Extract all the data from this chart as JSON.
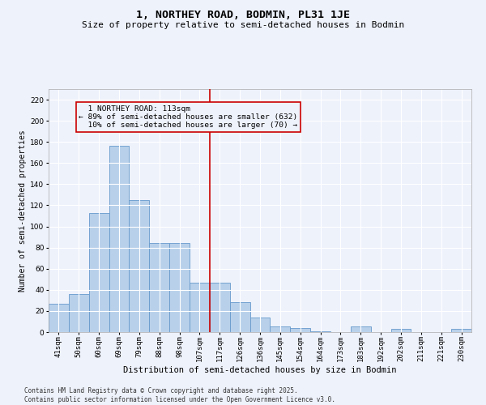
{
  "title": "1, NORTHEY ROAD, BODMIN, PL31 1JE",
  "subtitle": "Size of property relative to semi-detached houses in Bodmin",
  "xlabel": "Distribution of semi-detached houses by size in Bodmin",
  "ylabel": "Number of semi-detached properties",
  "categories": [
    "41sqm",
    "50sqm",
    "60sqm",
    "69sqm",
    "79sqm",
    "88sqm",
    "98sqm",
    "107sqm",
    "117sqm",
    "126sqm",
    "136sqm",
    "145sqm",
    "154sqm",
    "164sqm",
    "173sqm",
    "183sqm",
    "192sqm",
    "202sqm",
    "211sqm",
    "221sqm",
    "230sqm"
  ],
  "values": [
    27,
    36,
    113,
    176,
    125,
    84,
    84,
    47,
    47,
    28,
    14,
    5,
    4,
    1,
    0,
    5,
    0,
    3,
    0,
    0,
    3
  ],
  "bar_color": "#b8d0ea",
  "bar_edge_color": "#6699cc",
  "vline_x_index": 8,
  "vline_color": "#cc0000",
  "annotation_box_edge": "#cc0000",
  "property_label": "1 NORTHEY ROAD: 113sqm",
  "pct_smaller": 89,
  "count_smaller": 632,
  "pct_larger": 10,
  "count_larger": 70,
  "background_color": "#eef2fb",
  "grid_color": "#ffffff",
  "ylim": [
    0,
    230
  ],
  "yticks": [
    0,
    20,
    40,
    60,
    80,
    100,
    120,
    140,
    160,
    180,
    200,
    220
  ],
  "title_fontsize": 9.5,
  "subtitle_fontsize": 8,
  "xlabel_fontsize": 7.5,
  "ylabel_fontsize": 7,
  "tick_fontsize": 6.5,
  "footer_fontsize": 5.5,
  "annotation_fontsize": 6.8,
  "footer_line1": "Contains HM Land Registry data © Crown copyright and database right 2025.",
  "footer_line2": "Contains public sector information licensed under the Open Government Licence v3.0."
}
